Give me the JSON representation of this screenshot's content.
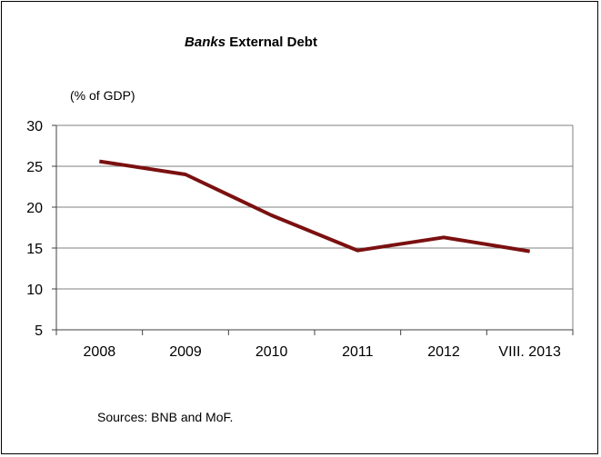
{
  "chart_data": {
    "type": "line",
    "title_em": "Banks",
    "title_rest": " External Debt",
    "ylabel": "(% of GDP)",
    "categories": [
      "2008",
      "2009",
      "2010",
      "2011",
      "2012",
      "VIII. 2013"
    ],
    "series": [
      {
        "values": [
          25.6,
          24.0,
          19.0,
          14.7,
          16.3,
          14.6
        ]
      }
    ],
    "ylim": [
      5,
      30
    ],
    "yticks": [
      5,
      10,
      15,
      20,
      25,
      30
    ],
    "grid": true,
    "line_color": "#7b1010",
    "source": "Sources: BNB and MoF."
  }
}
